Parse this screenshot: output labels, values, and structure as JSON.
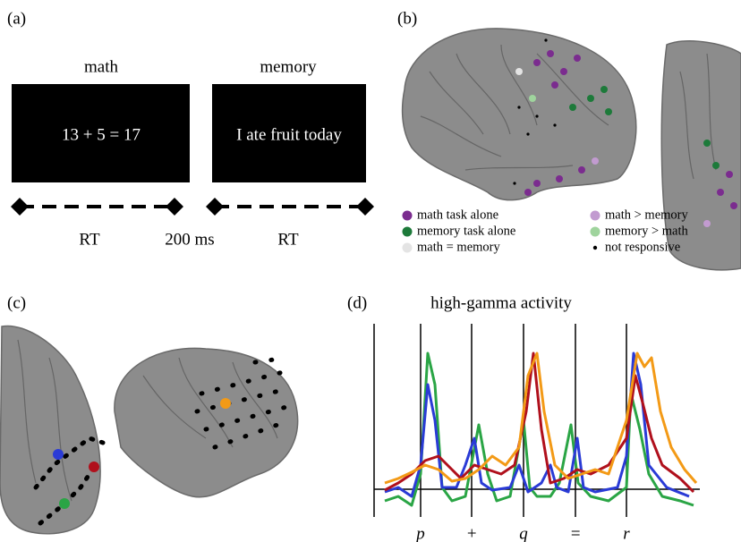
{
  "panel_a": {
    "label": "(a)",
    "screens": [
      {
        "title": "math",
        "text": "13 + 5 = 17"
      },
      {
        "title": "memory",
        "text": "I ate fruit today"
      }
    ],
    "timeline": [
      "RT",
      "200 ms",
      "RT"
    ]
  },
  "panel_b": {
    "label": "(b)",
    "legend": [
      {
        "label": "math task alone",
        "color": "#7b2c8f"
      },
      {
        "label": "math > memory",
        "color": "#c29bd0"
      },
      {
        "label": "memory task alone",
        "color": "#1d7a3a"
      },
      {
        "label": "memory > math",
        "color": "#9fd49d"
      },
      {
        "label": "math = memory",
        "color": "#e4e4e4"
      },
      {
        "label": "not responsive",
        "color": "#000000"
      }
    ]
  },
  "panel_c": {
    "label": "(c)"
  },
  "panel_d": {
    "label": "(d)",
    "title": "high-gamma activity",
    "x_labels": [
      "p",
      "+",
      "q",
      "=",
      "r"
    ]
  }
}
